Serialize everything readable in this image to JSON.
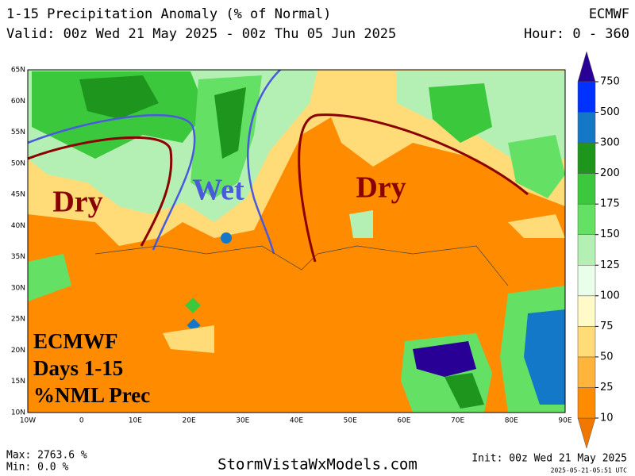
{
  "header": {
    "title": "1-15 Precipitation Anomaly (% of Normal)",
    "model": "ECMWF",
    "valid": "Valid: 00z Wed 21 May 2025 - 00z Thu 05 Jun 2025",
    "hours": "Hour: 0 - 360"
  },
  "map": {
    "lat_labels": [
      "65N",
      "60N",
      "55N",
      "50N",
      "45N",
      "40N",
      "35N",
      "30N",
      "25N",
      "20N",
      "15N",
      "10N"
    ],
    "lon_labels": [
      "10W",
      "0",
      "10E",
      "20E",
      "30E",
      "40E",
      "50E",
      "60E",
      "70E",
      "80E",
      "90E"
    ],
    "annotations": [
      "Dry",
      "Wet",
      "Dry"
    ],
    "stamp": [
      "ECMWF",
      "Days 1-15",
      "%NML Prec"
    ]
  },
  "colorbar": {
    "ticks": [
      10,
      25,
      50,
      75,
      100,
      125,
      150,
      175,
      200,
      300,
      500,
      750
    ],
    "colors": [
      "#f07800",
      "#ff8c00",
      "#ffb43c",
      "#ffdc78",
      "#fffac8",
      "#eaffea",
      "#b4f0b4",
      "#64e064",
      "#3cc83c",
      "#1e961e",
      "#1478c8",
      "#0032ff",
      "#280096"
    ]
  },
  "footer": {
    "max": "Max: 2763.6 %",
    "min": "Min: 0.0 %",
    "site": "StormVistaWxModels.com",
    "init": "Init: 00z Wed 21 May 2025",
    "stamp": "2025-05-21-05:51 UTC"
  }
}
